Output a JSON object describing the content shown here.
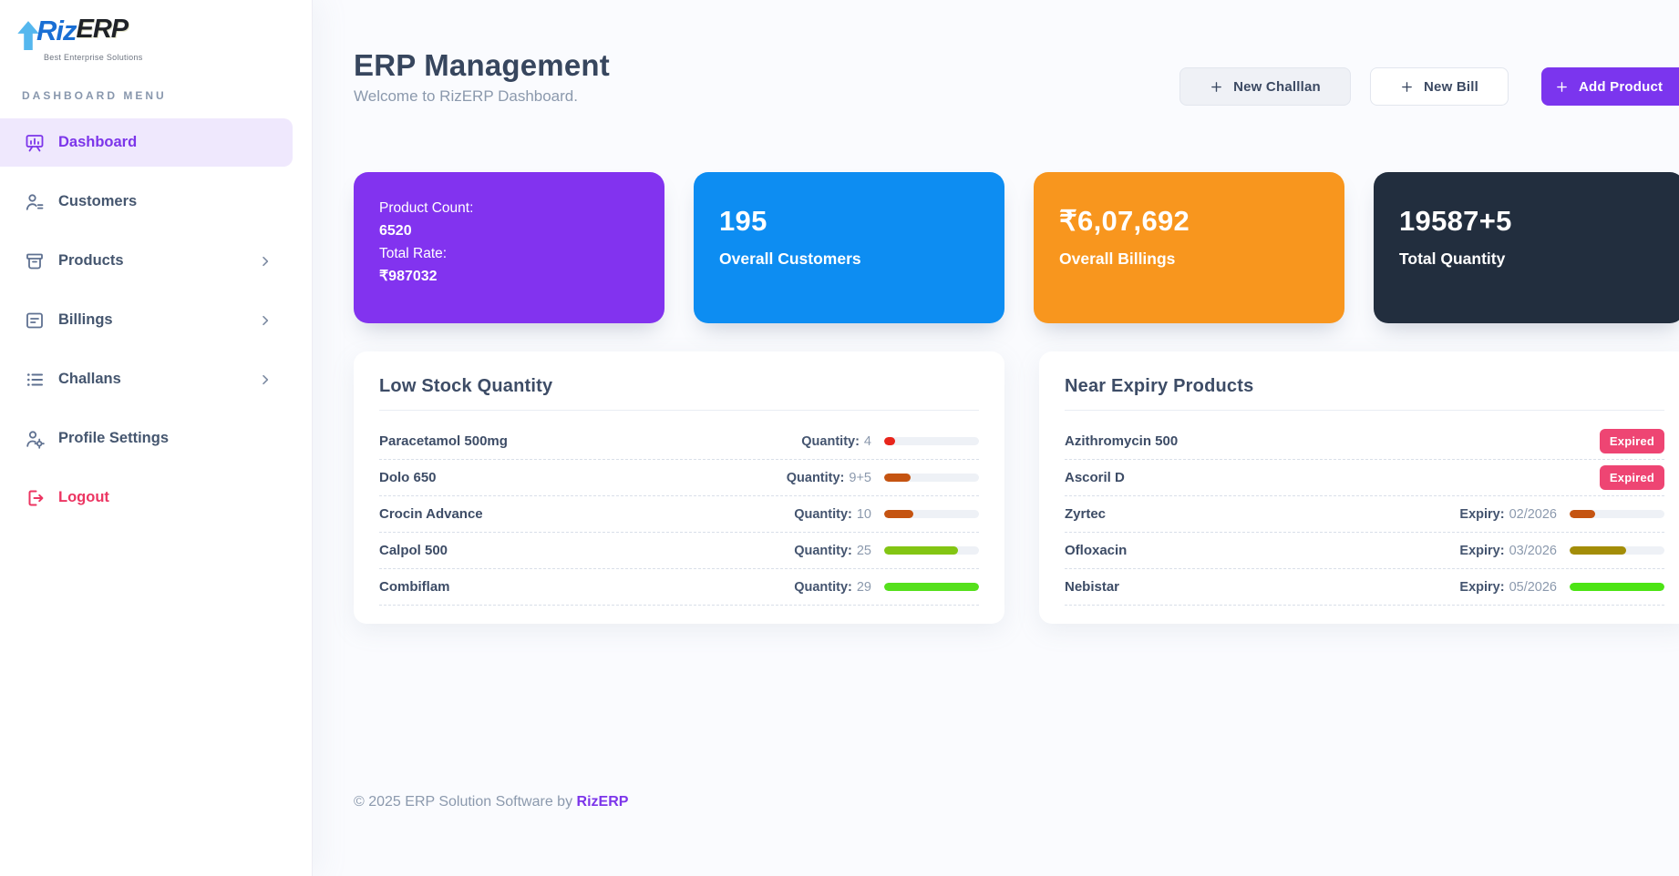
{
  "brand": {
    "name_blue": "Riz",
    "name_dark": "ERP",
    "tagline": "Best Enterprise Solutions"
  },
  "sidebar": {
    "section_label": "DASHBOARD MENU",
    "items": [
      {
        "label": "Dashboard",
        "icon": "dashboard-icon",
        "active": true
      },
      {
        "label": "Customers",
        "icon": "customers-icon"
      },
      {
        "label": "Products",
        "icon": "products-icon",
        "chevron": true
      },
      {
        "label": "Billings",
        "icon": "billings-icon",
        "chevron": true
      },
      {
        "label": "Challans",
        "icon": "challans-icon",
        "chevron": true
      },
      {
        "label": "Profile Settings",
        "icon": "profile-settings-icon"
      },
      {
        "label": "Logout",
        "icon": "logout-icon",
        "danger": true
      }
    ]
  },
  "header": {
    "title": "ERP Management",
    "subtitle": "Welcome to RizERP Dashboard.",
    "buttons": [
      {
        "label": "New Challlan",
        "style": "light"
      },
      {
        "label": "New Bill",
        "style": "white"
      },
      {
        "label": "Add Product",
        "style": "purple"
      }
    ]
  },
  "stat_cards": [
    {
      "id": "product-count",
      "color": "#8233ef",
      "lines": [
        {
          "text": "Product Count:",
          "bold": false
        },
        {
          "text": "6520",
          "bold": true
        },
        {
          "text": "Total Rate:",
          "bold": false
        },
        {
          "text": "₹987032",
          "bold": true
        }
      ]
    },
    {
      "id": "overall-customers",
      "color": "#0d8df2",
      "value": "195",
      "label": "Overall Customers"
    },
    {
      "id": "overall-billings",
      "color": "#f8961e",
      "value": "₹6,07,692",
      "label": "Overall Billings"
    },
    {
      "id": "total-quantity",
      "color": "#222e3e",
      "value": "19587+5",
      "label": "Total Quantity"
    }
  ],
  "low_stock": {
    "title": "Low Stock Quantity",
    "rows": [
      {
        "name": "Paracetamol 500mg",
        "label": "Quantity:",
        "value": "4",
        "bar_pct": 12,
        "bar_color": "#e8251b"
      },
      {
        "name": "Dolo 650",
        "label": "Quantity:",
        "value": "9+5",
        "bar_pct": 28,
        "bar_color": "#c55411"
      },
      {
        "name": "Crocin Advance",
        "label": "Quantity:",
        "value": "10",
        "bar_pct": 31,
        "bar_color": "#c55411"
      },
      {
        "name": "Calpol 500",
        "label": "Quantity:",
        "value": "25",
        "bar_pct": 78,
        "bar_color": "#83c513"
      },
      {
        "name": "Combiflam",
        "label": "Quantity:",
        "value": "29",
        "bar_pct": 100,
        "bar_color": "#55e01c"
      }
    ]
  },
  "near_expiry": {
    "title": "Near Expiry Products",
    "rows": [
      {
        "name": "Azithromycin 500",
        "badge": "Expired"
      },
      {
        "name": "Ascoril D",
        "badge": "Expired"
      },
      {
        "name": "Zyrtec",
        "label": "Expiry:",
        "value": "02/2026",
        "bar_pct": 27,
        "bar_color": "#c55411"
      },
      {
        "name": "Ofloxacin",
        "label": "Expiry:",
        "value": "03/2026",
        "bar_pct": 60,
        "bar_color": "#a38d08"
      },
      {
        "name": "Nebistar",
        "label": "Expiry:",
        "value": "05/2026",
        "bar_pct": 100,
        "bar_color": "#4ce414"
      }
    ]
  },
  "footer": {
    "text": "© 2025 ERP Solution Software by ",
    "brand": "RizERP"
  },
  "colors": {
    "accent_purple": "#7b35ee",
    "danger_red": "#ec3562",
    "expired_badge": "#ee4573",
    "bar_track": "#eef1f6",
    "active_item_bg": "#efe8fd"
  }
}
